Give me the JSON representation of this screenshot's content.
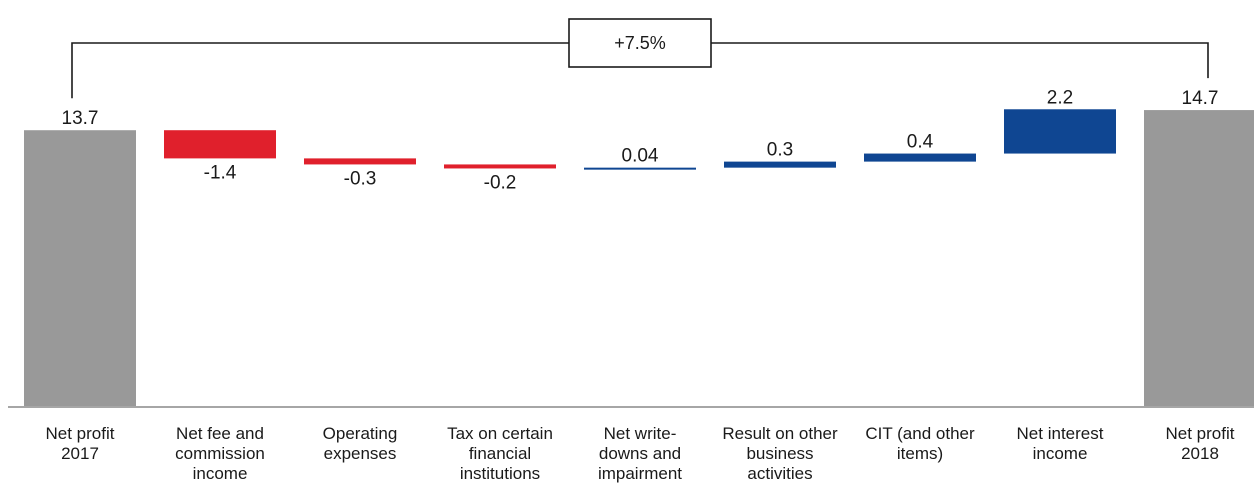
{
  "chart_data": {
    "type": "bar",
    "subtype": "waterfall",
    "categories": [
      [
        "Net profit",
        "2017"
      ],
      [
        "Net fee and",
        "commission",
        "income"
      ],
      [
        "Operating",
        "expenses"
      ],
      [
        "Tax on certain",
        "financial",
        "institutions"
      ],
      [
        "Net write-",
        "downs and",
        "impairment"
      ],
      [
        "Result on other",
        "business",
        "activities"
      ],
      [
        "CIT (and other",
        "items)"
      ],
      [
        "Net interest",
        "income"
      ],
      [
        "Net profit",
        "2018"
      ]
    ],
    "values": [
      13.7,
      -1.4,
      -0.3,
      -0.2,
      0.04,
      0.3,
      0.4,
      2.2,
      14.7
    ],
    "value_labels": [
      "13.7",
      "-1.4",
      "-0.3",
      "-0.2",
      "0.04",
      "0.3",
      "0.4",
      "2.2",
      "14.7"
    ],
    "bar_kinds": [
      "total",
      "delta",
      "delta",
      "delta",
      "delta",
      "delta",
      "delta",
      "delta",
      "total"
    ],
    "colors": {
      "total": "#999999",
      "negative": "#e0202c",
      "positive": "#0f4692",
      "axis": "#888888",
      "bracket": "#1a1a1a"
    },
    "bracket_label": "+7.5%",
    "ylim": [
      0,
      15.3
    ],
    "grid": false,
    "legend": "none"
  }
}
